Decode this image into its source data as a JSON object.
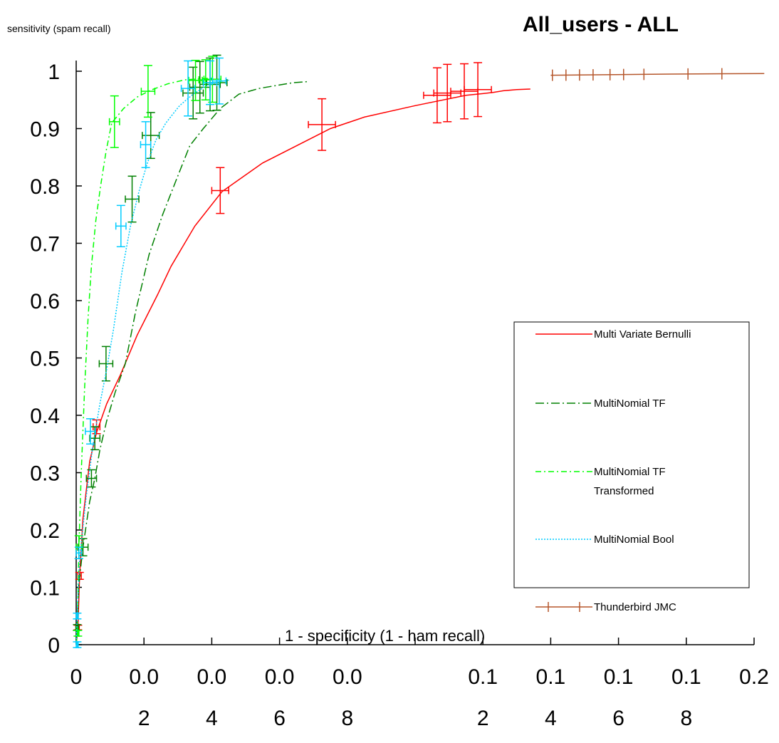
{
  "chart_data": {
    "type": "line",
    "title": "All_users - ALL",
    "ylabel": "sensitivity (spam recall)",
    "xlabel": "1 - specificity (1 - ham recall)",
    "xlim": [
      0,
      0.2
    ],
    "ylim": [
      0,
      1
    ],
    "y_ticks": [
      {
        "value": 0,
        "label": "0"
      },
      {
        "value": 0.1,
        "label": "0.1"
      },
      {
        "value": 0.2,
        "label": "0.2"
      },
      {
        "value": 0.3,
        "label": "0.3"
      },
      {
        "value": 0.4,
        "label": "0.4"
      },
      {
        "value": 0.5,
        "label": "0.5"
      },
      {
        "value": 0.6,
        "label": "0.6"
      },
      {
        "value": 0.7,
        "label": "0.7"
      },
      {
        "value": 0.8,
        "label": "0.8"
      },
      {
        "value": 0.9,
        "label": "0.9"
      },
      {
        "value": 1,
        "label": "1"
      }
    ],
    "x_ticks": [
      {
        "value": 0,
        "line1": "0",
        "line2": ""
      },
      {
        "value": 0.02,
        "line1": "0.0",
        "line2": "2"
      },
      {
        "value": 0.04,
        "line1": "0.0",
        "line2": "4"
      },
      {
        "value": 0.06,
        "line1": "0.0",
        "line2": "6"
      },
      {
        "value": 0.08,
        "line1": "0.0",
        "line2": "8"
      },
      {
        "value": 0.1,
        "line1": "",
        "line2": ""
      },
      {
        "value": 0.12,
        "line1": "0.1",
        "line2": "2"
      },
      {
        "value": 0.14,
        "line1": "0.1",
        "line2": "4"
      },
      {
        "value": 0.16,
        "line1": "0.1",
        "line2": "6"
      },
      {
        "value": 0.18,
        "line1": "0.1",
        "line2": "8"
      },
      {
        "value": 0.2,
        "line1": "0.2",
        "line2": ""
      }
    ],
    "legend_position": "right",
    "series": [
      {
        "name": "Multi Variate Bernulli",
        "color": "#ff0000",
        "dash": "solid",
        "curve": [
          [
            0,
            0
          ],
          [
            0.0005,
            0.03
          ],
          [
            0.001,
            0.12
          ],
          [
            0.002,
            0.22
          ],
          [
            0.004,
            0.32
          ],
          [
            0.006,
            0.37
          ],
          [
            0.009,
            0.42
          ],
          [
            0.013,
            0.47
          ],
          [
            0.018,
            0.54
          ],
          [
            0.024,
            0.61
          ],
          [
            0.028,
            0.66
          ],
          [
            0.035,
            0.73
          ],
          [
            0.043,
            0.79
          ],
          [
            0.055,
            0.84
          ],
          [
            0.07,
            0.885
          ],
          [
            0.075,
            0.9
          ],
          [
            0.085,
            0.92
          ],
          [
            0.1,
            0.94
          ],
          [
            0.115,
            0.958
          ],
          [
            0.12,
            0.961
          ],
          [
            0.123,
            0.963
          ],
          [
            0.126,
            0.966
          ],
          [
            0.13,
            0.968
          ],
          [
            0.134,
            0.969
          ]
        ],
        "points": [
          {
            "x": 0.0005,
            "y": 0.03,
            "yerr": 0.004,
            "xerr": 0.0004
          },
          {
            "x": 0.001,
            "y": 0.12,
            "yerr": 0.006,
            "xerr": 0.0005
          },
          {
            "x": 0.006,
            "y": 0.38,
            "yerr": 0.012,
            "xerr": 0.001
          },
          {
            "x": 0.0425,
            "y": 0.792,
            "yerr": 0.04,
            "xerr": 0.0025
          },
          {
            "x": 0.0725,
            "y": 0.907,
            "yerr": 0.045,
            "xerr": 0.004
          },
          {
            "x": 0.1065,
            "y": 0.958,
            "yerr": 0.048,
            "xerr": 0.004
          },
          {
            "x": 0.1095,
            "y": 0.962,
            "yerr": 0.05,
            "xerr": 0.004
          },
          {
            "x": 0.1145,
            "y": 0.965,
            "yerr": 0.048,
            "xerr": 0.004
          },
          {
            "x": 0.1185,
            "y": 0.968,
            "yerr": 0.047,
            "xerr": 0.004
          }
        ]
      },
      {
        "name": "MultiNomial TF",
        "color": "#008000",
        "dash": "12,4,2,4",
        "curve": [
          [
            0,
            0
          ],
          [
            0.0003,
            0.03
          ],
          [
            0.0007,
            0.1
          ],
          [
            0.002,
            0.17
          ],
          [
            0.004,
            0.25
          ],
          [
            0.0055,
            0.29
          ],
          [
            0.007,
            0.34
          ],
          [
            0.009,
            0.39
          ],
          [
            0.0115,
            0.44
          ],
          [
            0.0145,
            0.49
          ],
          [
            0.0175,
            0.58
          ],
          [
            0.0215,
            0.68
          ],
          [
            0.0255,
            0.75
          ],
          [
            0.0295,
            0.81
          ],
          [
            0.0335,
            0.87
          ],
          [
            0.0375,
            0.9
          ],
          [
            0.0425,
            0.935
          ],
          [
            0.048,
            0.96
          ],
          [
            0.054,
            0.97
          ],
          [
            0.059,
            0.975
          ],
          [
            0.064,
            0.98
          ],
          [
            0.0685,
            0.982
          ]
        ],
        "points": [
          {
            "x": 0.0003,
            "y": 0.03,
            "yerr": 0.005,
            "xerr": 0.0004
          },
          {
            "x": 0.002,
            "y": 0.17,
            "yerr": 0.015,
            "xerr": 0.0015
          },
          {
            "x": 0.0045,
            "y": 0.29,
            "yerr": 0.015,
            "xerr": 0.0015
          },
          {
            "x": 0.0055,
            "y": 0.36,
            "yerr": 0.02,
            "xerr": 0.0015
          },
          {
            "x": 0.0088,
            "y": 0.49,
            "yerr": 0.03,
            "xerr": 0.002
          },
          {
            "x": 0.0165,
            "y": 0.777,
            "yerr": 0.04,
            "xerr": 0.002
          },
          {
            "x": 0.022,
            "y": 0.888,
            "yerr": 0.04,
            "xerr": 0.0025
          },
          {
            "x": 0.0345,
            "y": 0.962,
            "yerr": 0.045,
            "xerr": 0.003
          },
          {
            "x": 0.0365,
            "y": 0.972,
            "yerr": 0.045,
            "xerr": 0.003
          },
          {
            "x": 0.0395,
            "y": 0.977,
            "yerr": 0.046,
            "xerr": 0.003
          },
          {
            "x": 0.0415,
            "y": 0.98,
            "yerr": 0.048,
            "xerr": 0.003
          }
        ]
      },
      {
        "name": "MultiNomial TF Transformed",
        "label_lines": [
          "MultiNomial TF",
          "Transformed"
        ],
        "color": "#00ff00",
        "dash": "8,4,2,4",
        "curve": [
          [
            0,
            0
          ],
          [
            0.0003,
            0.02
          ],
          [
            0.0008,
            0.17
          ],
          [
            0.0015,
            0.3
          ],
          [
            0.0025,
            0.45
          ],
          [
            0.0035,
            0.57
          ],
          [
            0.0045,
            0.66
          ],
          [
            0.0058,
            0.74
          ],
          [
            0.0072,
            0.8
          ],
          [
            0.0088,
            0.86
          ],
          [
            0.0105,
            0.91
          ],
          [
            0.014,
            0.935
          ],
          [
            0.018,
            0.955
          ],
          [
            0.022,
            0.967
          ],
          [
            0.027,
            0.978
          ],
          [
            0.032,
            0.985
          ],
          [
            0.037,
            0.987
          ],
          [
            0.04,
            0.988
          ]
        ],
        "points": [
          {
            "x": 0.0005,
            "y": 0.02,
            "yerr": 0.005,
            "xerr": 0.0003
          },
          {
            "x": 0.0008,
            "y": 0.17,
            "yerr": 0.02,
            "xerr": 0.0008
          },
          {
            "x": 0.0113,
            "y": 0.912,
            "yerr": 0.045,
            "xerr": 0.0015
          },
          {
            "x": 0.0212,
            "y": 0.965,
            "yerr": 0.045,
            "xerr": 0.002
          },
          {
            "x": 0.0352,
            "y": 0.984,
            "yerr": 0.035,
            "xerr": 0.002
          },
          {
            "x": 0.0382,
            "y": 0.985,
            "yerr": 0.035,
            "xerr": 0.002
          },
          {
            "x": 0.0402,
            "y": 0.986,
            "yerr": 0.04,
            "xerr": 0.0025
          }
        ]
      },
      {
        "name": "MultiNomial Bool",
        "color": "#00ccff",
        "dash": "2,2",
        "curve": [
          [
            0,
            0
          ],
          [
            0.0003,
            0.05
          ],
          [
            0.001,
            0.15
          ],
          [
            0.003,
            0.26
          ],
          [
            0.005,
            0.35
          ],
          [
            0.007,
            0.42
          ],
          [
            0.009,
            0.48
          ],
          [
            0.011,
            0.55
          ],
          [
            0.0135,
            0.65
          ],
          [
            0.016,
            0.73
          ],
          [
            0.0185,
            0.79
          ],
          [
            0.021,
            0.84
          ],
          [
            0.0235,
            0.88
          ],
          [
            0.0265,
            0.91
          ],
          [
            0.0305,
            0.94
          ],
          [
            0.0345,
            0.96
          ],
          [
            0.0385,
            0.975
          ],
          [
            0.0425,
            0.982
          ],
          [
            0.0455,
            0.985
          ]
        ],
        "points": [
          {
            "x": 0.0003,
            "y": 0.0,
            "yerr": 0.005,
            "xerr": 0.0003
          },
          {
            "x": 0.0003,
            "y": 0.05,
            "yerr": 0.005,
            "xerr": 0.0003
          },
          {
            "x": 0.0008,
            "y": 0.16,
            "yerr": 0.01,
            "xerr": 0.0008
          },
          {
            "x": 0.0042,
            "y": 0.372,
            "yerr": 0.022,
            "xerr": 0.0015
          },
          {
            "x": 0.0132,
            "y": 0.73,
            "yerr": 0.036,
            "xerr": 0.0015
          },
          {
            "x": 0.0205,
            "y": 0.872,
            "yerr": 0.04,
            "xerr": 0.0015
          },
          {
            "x": 0.033,
            "y": 0.97,
            "yerr": 0.048,
            "xerr": 0.002
          },
          {
            "x": 0.0395,
            "y": 0.98,
            "yerr": 0.038,
            "xerr": 0.002
          },
          {
            "x": 0.0422,
            "y": 0.983,
            "yerr": 0.04,
            "xerr": 0.002
          }
        ]
      },
      {
        "name": "Thunderbird JMC",
        "color": "#b5562b",
        "dash": "solid",
        "curve": [
          [
            0.14,
            0.993
          ],
          [
            0.175,
            0.995
          ],
          [
            0.203,
            0.996
          ]
        ],
        "markers": [
          0.1405,
          0.1445,
          0.1485,
          0.1525,
          0.1575,
          0.1615,
          0.1675,
          0.1805,
          0.1905
        ]
      }
    ]
  }
}
